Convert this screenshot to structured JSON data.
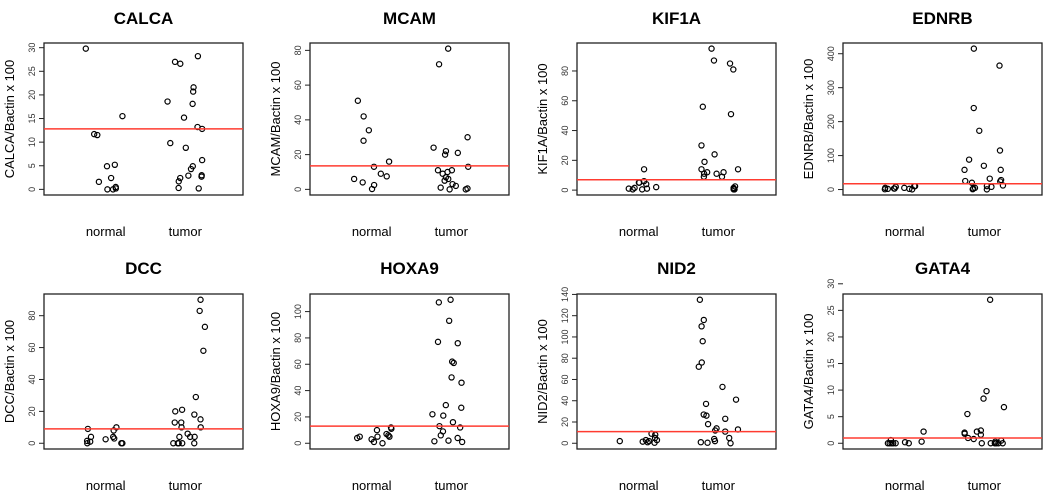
{
  "chart_data": [
    {
      "type": "scatter",
      "title": "CALCA",
      "ylabel": "CALCA/Bactin x 100",
      "categories": [
        "normal",
        "tumor"
      ],
      "yticks": [
        0,
        5,
        10,
        15,
        20,
        25,
        30
      ],
      "cutoff": 12.8,
      "series": [
        {
          "name": "normal",
          "values": [
            29.8,
            15.5,
            11.5,
            11.7,
            5.2,
            4.9,
            1.6,
            0.5,
            0.2,
            0,
            0,
            2.4
          ]
        },
        {
          "name": "tumor",
          "values": [
            28.2,
            27,
            26.6,
            21.6,
            20.7,
            18.6,
            18.1,
            15.2,
            12.8,
            13.2,
            9.8,
            8.8,
            6.2,
            4.9,
            4.3,
            2.9,
            3,
            2.7,
            2.4,
            1.7,
            0.2,
            0.3
          ]
        }
      ]
    },
    {
      "type": "scatter",
      "title": "MCAM",
      "ylabel": "MCAM/Bactin x 100",
      "categories": [
        "normal",
        "tumor"
      ],
      "yticks": [
        0,
        20,
        40,
        60,
        80
      ],
      "cutoff": 13.5,
      "series": [
        {
          "name": "normal",
          "values": [
            51,
            42,
            34,
            28,
            16,
            13,
            9,
            7.5,
            6,
            4,
            2.5,
            0.2
          ]
        },
        {
          "name": "tumor",
          "values": [
            81,
            72,
            30,
            24,
            22,
            20,
            21,
            13,
            11,
            11,
            10,
            9,
            7,
            6,
            5,
            3,
            2,
            1,
            0.5,
            0,
            0
          ]
        }
      ]
    },
    {
      "type": "scatter",
      "title": "KIF1A",
      "ylabel": "KIF1A/Bactin x 100",
      "categories": [
        "normal",
        "tumor"
      ],
      "yticks": [
        0,
        20,
        40,
        60,
        80
      ],
      "cutoff": 7,
      "series": [
        {
          "name": "normal",
          "values": [
            14,
            6,
            5,
            5,
            4,
            2,
            1.5,
            1,
            1,
            0.5,
            0.5
          ]
        },
        {
          "name": "tumor",
          "values": [
            95,
            87,
            85,
            81,
            56,
            51,
            30,
            24,
            19,
            14,
            14,
            12,
            12,
            11,
            11,
            9,
            9,
            2.5,
            1.5,
            1,
            0.5,
            0.5
          ]
        }
      ]
    },
    {
      "type": "scatter",
      "title": "EDNRB",
      "ylabel": "EDNRB/Bactin x 100",
      "categories": [
        "normal",
        "tumor"
      ],
      "yticks": [
        0,
        100,
        200,
        300,
        400
      ],
      "cutoff": 17,
      "series": [
        {
          "name": "normal",
          "values": [
            10,
            8,
            5,
            3,
            2,
            1,
            2,
            3,
            10,
            5,
            0.5
          ]
        },
        {
          "name": "tumor",
          "values": [
            415,
            365,
            240,
            173,
            115,
            88,
            70,
            58,
            58,
            32,
            28,
            25,
            24,
            20,
            12,
            10,
            8,
            5,
            3,
            1,
            0.5
          ]
        }
      ]
    },
    {
      "type": "scatter",
      "title": "DCC",
      "ylabel": "DCC/Bactin x 100",
      "categories": [
        "normal",
        "tumor"
      ],
      "yticks": [
        0,
        20,
        40,
        60,
        80
      ],
      "cutoff": 9,
      "series": [
        {
          "name": "normal",
          "values": [
            9,
            10,
            8,
            3,
            2.5,
            1.5,
            1,
            0,
            4,
            4,
            0,
            0
          ]
        },
        {
          "name": "tumor",
          "values": [
            90,
            83,
            73,
            58,
            29,
            21,
            20,
            18,
            15,
            13,
            13,
            10,
            10,
            6,
            4,
            4,
            4,
            0,
            0,
            0,
            0,
            0
          ]
        }
      ]
    },
    {
      "type": "scatter",
      "title": "HOXA9",
      "ylabel": "HOXA9/Bactin x 100",
      "categories": [
        "normal",
        "tumor"
      ],
      "yticks": [
        0,
        20,
        40,
        60,
        80,
        100
      ],
      "cutoff": 13,
      "series": [
        {
          "name": "normal",
          "values": [
            12,
            11,
            10,
            7,
            6,
            5,
            5,
            4,
            3,
            1,
            0,
            5
          ]
        },
        {
          "name": "tumor",
          "values": [
            109,
            107,
            93,
            77,
            76,
            62,
            61,
            50,
            46,
            29,
            27,
            22,
            21,
            16,
            13,
            12,
            9,
            6,
            4,
            2,
            1.5,
            1
          ]
        }
      ]
    },
    {
      "type": "scatter",
      "title": "NID2",
      "ylabel": "NID2/Bactin x 100",
      "categories": [
        "normal",
        "tumor"
      ],
      "yticks": [
        0,
        20,
        40,
        60,
        80,
        100,
        120,
        140
      ],
      "cutoff": 11,
      "series": [
        {
          "name": "normal",
          "values": [
            9,
            8,
            5,
            3,
            3,
            2,
            2,
            1.5,
            1,
            0.5
          ]
        },
        {
          "name": "tumor",
          "values": [
            135,
            116,
            110,
            96,
            76,
            72,
            53,
            41,
            37,
            27,
            26,
            23,
            18,
            14,
            13,
            12,
            11,
            5,
            4,
            2,
            1,
            0.5,
            0
          ]
        }
      ]
    },
    {
      "type": "scatter",
      "title": "GATA4",
      "ylabel": "GATA4/Bactin x 100",
      "categories": [
        "normal",
        "tumor"
      ],
      "yticks": [
        0,
        5,
        10,
        15,
        20,
        25,
        30
      ],
      "cutoff": 1,
      "series": [
        {
          "name": "normal",
          "values": [
            2.2,
            0.6,
            0.3,
            0.2,
            0,
            0,
            0,
            0,
            0,
            0
          ]
        },
        {
          "name": "tumor",
          "values": [
            27,
            9.8,
            8.4,
            6.8,
            5.5,
            2.4,
            2.2,
            2,
            1.8,
            1.6,
            1,
            0.8,
            0.5,
            0.3,
            0,
            0,
            0,
            0,
            0,
            0
          ]
        }
      ]
    }
  ],
  "colors": {
    "cutoff": "#ff3b30",
    "points": "#000000"
  }
}
